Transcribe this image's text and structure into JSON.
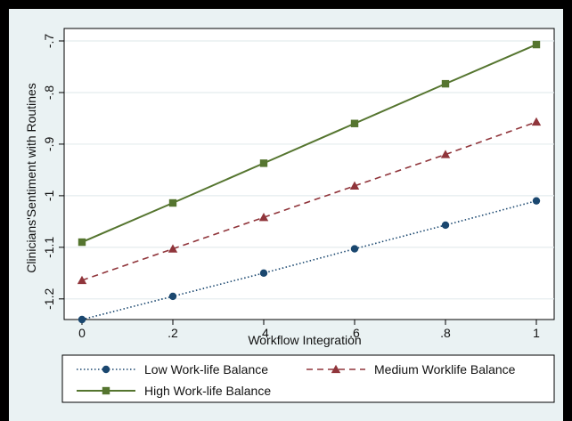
{
  "chart_data": {
    "type": "line",
    "title": "",
    "xlabel": "Workflow Integration",
    "ylabel": "Clinicians'Sentiment with Routines",
    "xlim": [
      0,
      1
    ],
    "ylim": [
      -1.24,
      -0.7
    ],
    "x_ticks": [
      0,
      0.2,
      0.4,
      0.6,
      0.8,
      1
    ],
    "x_tick_labels": [
      "0",
      ".2",
      ".4",
      ".6",
      ".8",
      "1"
    ],
    "y_ticks": [
      -1.2,
      -1.1,
      -1.0,
      -0.9,
      -0.8,
      -0.7
    ],
    "y_tick_labels": [
      "-1.2",
      "-1.1",
      "-1",
      "-.9",
      "-.8",
      "-.7"
    ],
    "grid": true,
    "legend_position": "bottom",
    "x": [
      0,
      0.2,
      0.4,
      0.6,
      0.8,
      1
    ],
    "series": [
      {
        "name": "Low Work-life Balance",
        "values": [
          -1.24,
          -1.195,
          -1.15,
          -1.103,
          -1.057,
          -1.01
        ],
        "color": "#1a476f",
        "marker": "circle",
        "line_style": "dotted"
      },
      {
        "name": "Medium Worklife Balance",
        "values": [
          -1.164,
          -1.103,
          -1.042,
          -0.981,
          -0.92,
          -0.857
        ],
        "color": "#90353b",
        "marker": "triangle",
        "line_style": "dashed"
      },
      {
        "name": "High Work-life Balance",
        "values": [
          -1.09,
          -1.014,
          -0.937,
          -0.86,
          -0.783,
          -0.707
        ],
        "color": "#55752f",
        "marker": "square",
        "line_style": "solid"
      }
    ]
  }
}
